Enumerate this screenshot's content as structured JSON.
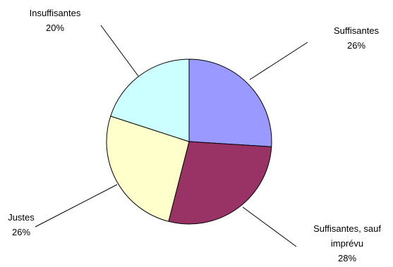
{
  "chart_data": {
    "type": "pie",
    "slices": [
      {
        "label_lines": [
          "Suffisantes"
        ],
        "percent_label": "26%",
        "value": 26,
        "color": "#9999ff"
      },
      {
        "label_lines": [
          "Suffisantes, sauf",
          "imprévu"
        ],
        "percent_label": "28%",
        "value": 28,
        "color": "#993366"
      },
      {
        "label_lines": [
          "Justes"
        ],
        "percent_label": "26%",
        "value": 26,
        "color": "#ffffcc"
      },
      {
        "label_lines": [
          "Insuffisantes"
        ],
        "percent_label": "20%",
        "value": 20,
        "color": "#ccffff"
      }
    ],
    "start_angle_deg": 0,
    "direction": "clockwise"
  }
}
